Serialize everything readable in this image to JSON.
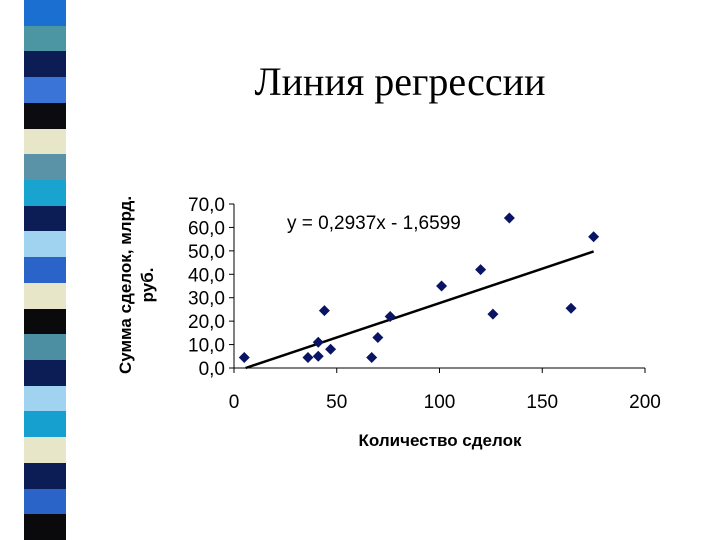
{
  "slide": {
    "title": "Линия регрессии",
    "stripe_colors": [
      "#1b6fd1",
      "#4c95a3",
      "#0c1c54",
      "#3a74d6",
      "#0c0c10",
      "#e8e6c8",
      "#5a92a8",
      "#19a4cf",
      "#0c1c54",
      "#9fd3ef",
      "#2b64c9",
      "#e8e6c8",
      "#0a0a0c",
      "#4c8fa3",
      "#0c1c54",
      "#9fd3ef",
      "#16a0cf",
      "#e8e6c8",
      "#0c1c54",
      "#2b64c9",
      "#0a0a0c"
    ]
  },
  "chart_data": {
    "type": "scatter",
    "xlabel": "Количество сделок",
    "ylabel_lines": [
      "Сумма сделок, млрд.",
      "руб."
    ],
    "xlim": [
      0,
      200
    ],
    "ylim": [
      0,
      70
    ],
    "x_ticks": [
      "0",
      "50",
      "100",
      "150",
      "200"
    ],
    "y_ticks": [
      "0,0",
      "10,0",
      "20,0",
      "30,0",
      "40,0",
      "50,0",
      "60,0",
      "70,0"
    ],
    "points": [
      {
        "x": 5,
        "y": 4.5
      },
      {
        "x": 36,
        "y": 4.5
      },
      {
        "x": 41,
        "y": 5
      },
      {
        "x": 41,
        "y": 11
      },
      {
        "x": 44,
        "y": 24.5
      },
      {
        "x": 47,
        "y": 8
      },
      {
        "x": 67,
        "y": 4.5
      },
      {
        "x": 70,
        "y": 13
      },
      {
        "x": 76,
        "y": 22
      },
      {
        "x": 101,
        "y": 35
      },
      {
        "x": 120,
        "y": 42
      },
      {
        "x": 126,
        "y": 23
      },
      {
        "x": 134,
        "y": 64
      },
      {
        "x": 164,
        "y": 25.5
      },
      {
        "x": 175,
        "y": 56
      }
    ],
    "trendline": {
      "slope": 0.2937,
      "intercept": -1.6599,
      "x_range": [
        5.65,
        175
      ]
    },
    "equation": "y = 0,2937x - 1,6599",
    "marker_color": "#0a1464",
    "line_color": "#000000"
  }
}
